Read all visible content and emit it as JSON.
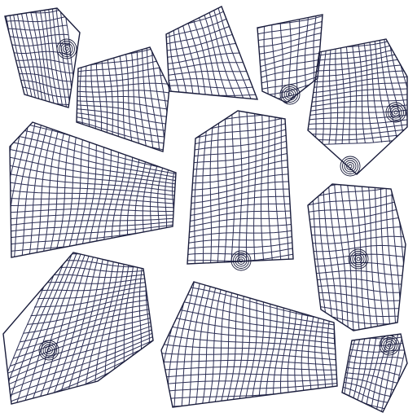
{
  "canvas": {
    "background": "#ffffff",
    "wire_color": "#2c2f55",
    "accent_color": "#1a1d3c"
  },
  "islands": [
    {
      "id": "top-left-patch",
      "cols": 16,
      "rows": 15
    },
    {
      "id": "upper-left-panel",
      "cols": 18,
      "rows": 18
    },
    {
      "id": "top-center-panel",
      "cols": 16,
      "rows": 14
    },
    {
      "id": "top-narrow-patch",
      "cols": 10,
      "rows": 14
    },
    {
      "id": "right-upper-patch",
      "cols": 18,
      "rows": 22
    },
    {
      "id": "left-large-panel",
      "cols": 30,
      "rows": 24
    },
    {
      "id": "center-tall-panel",
      "cols": 18,
      "rows": 28
    },
    {
      "id": "right-middle-patch",
      "cols": 18,
      "rows": 20
    },
    {
      "id": "bottom-left-patch",
      "cols": 22,
      "rows": 26
    },
    {
      "id": "bottom-center-panel",
      "cols": 32,
      "rows": 20
    },
    {
      "id": "bottom-right-patch",
      "cols": 12,
      "rows": 14
    }
  ]
}
